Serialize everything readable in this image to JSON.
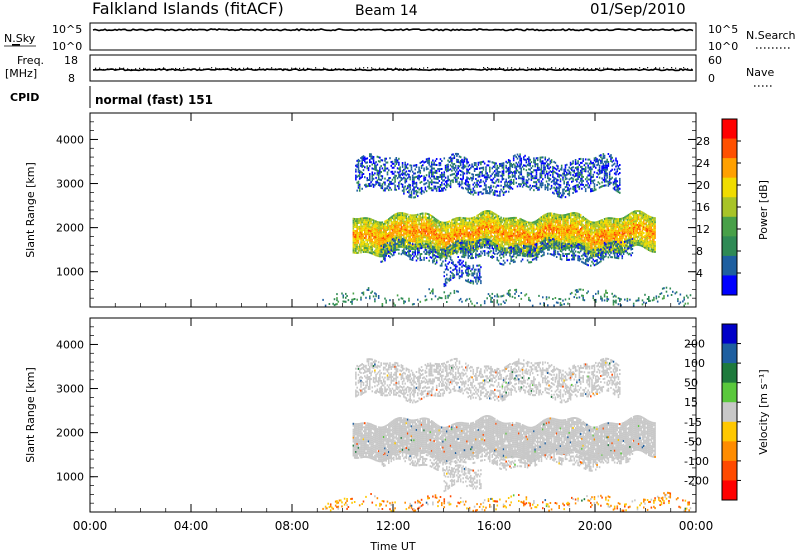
{
  "header": {
    "title": "Falkland Islands (fitACF)",
    "beam": "Beam 14",
    "date": "01/Sep/2010"
  },
  "panels": {
    "nsky": {
      "label": "N.Sky",
      "ticks_left": [
        "10^5",
        "10^0"
      ],
      "right_label": "N.Search",
      "ticks_right": [
        "10^5",
        "10^0"
      ]
    },
    "freq": {
      "label_line1": "Freq.",
      "label_line2": "[MHz]",
      "ticks_left": [
        "18",
        "8"
      ],
      "right_label": "Nave",
      "ticks_right": [
        "60",
        "0"
      ]
    },
    "cpid": {
      "label": "CPID",
      "value": "normal (fast) 151"
    }
  },
  "colors": {
    "power_scale": [
      "#0000ff",
      "#1e5fa0",
      "#2f8a55",
      "#48a048",
      "#a8c428",
      "#f0dc00",
      "#ffa000",
      "#ff5000",
      "#ff0000"
    ],
    "velocity_scale": [
      "#ff0000",
      "#ff4a00",
      "#ff8c00",
      "#ffc800",
      "#c8c8c8",
      "#5ac83c",
      "#1e7a3c",
      "#1e5fa0",
      "#0000c8"
    ],
    "background_noise_velocity": "#c8c8c8"
  },
  "chart_data": [
    {
      "type": "heatmap",
      "panel": "power",
      "title": "",
      "xlabel": "",
      "ylabel": "Slant Range [km]",
      "x_unit": "hours UT",
      "xlim": [
        0,
        24
      ],
      "ylim": [
        200,
        4600
      ],
      "y_ticks": [
        "1000",
        "2000",
        "3000",
        "4000"
      ],
      "colorbar": {
        "label": "Power [dB]",
        "range": [
          0,
          32
        ],
        "ticks": [
          "4",
          "8",
          "12",
          "16",
          "20",
          "24",
          "28"
        ]
      },
      "bands": [
        {
          "x_start": 10.4,
          "x_end": 22.4,
          "y_low": 1450,
          "y_high": 2250,
          "value_mean": 17
        },
        {
          "x_start": 11.5,
          "x_end": 21.5,
          "y_low": 1250,
          "y_high": 1650,
          "value_mean": 6
        },
        {
          "x_start": 14.0,
          "x_end": 15.5,
          "y_low": 700,
          "y_high": 1150,
          "value_mean": 5
        },
        {
          "x_start": 10.5,
          "x_end": 21.0,
          "y_low": 2800,
          "y_high": 3550,
          "value_mean": 5
        },
        {
          "x_start": 9.2,
          "x_end": 23.8,
          "y_low": 250,
          "y_high": 500,
          "value_mean": 8
        }
      ]
    },
    {
      "type": "heatmap",
      "panel": "velocity",
      "title": "",
      "xlabel": "Time UT",
      "ylabel": "Slant Range [km]",
      "x_unit": "hours UT",
      "xlim": [
        0,
        24
      ],
      "ylim": [
        200,
        4600
      ],
      "y_ticks": [
        "1000",
        "2000",
        "3000",
        "4000"
      ],
      "x_ticks": [
        "00:00",
        "04:00",
        "08:00",
        "12:00",
        "16:00",
        "20:00",
        "00:00"
      ],
      "colorbar": {
        "label": "Velocity [m s⁻¹]",
        "ticks": [
          "200",
          "100",
          "50",
          "15",
          "-15",
          "-50",
          "-100",
          "-200"
        ]
      },
      "bands": [
        {
          "x_start": 10.4,
          "x_end": 22.4,
          "y_low": 1450,
          "y_high": 2250,
          "value_mean": 0
        },
        {
          "x_start": 11.5,
          "x_end": 21.5,
          "y_low": 1250,
          "y_high": 1650,
          "value_mean": 0
        },
        {
          "x_start": 14.0,
          "x_end": 15.5,
          "y_low": 700,
          "y_high": 1150,
          "value_mean": 0
        },
        {
          "x_start": 10.5,
          "x_end": 21.0,
          "y_low": 2800,
          "y_high": 3550,
          "value_mean": 0
        },
        {
          "x_start": 9.2,
          "x_end": 23.8,
          "y_low": 250,
          "y_high": 500,
          "value_mean": -60
        }
      ]
    }
  ]
}
